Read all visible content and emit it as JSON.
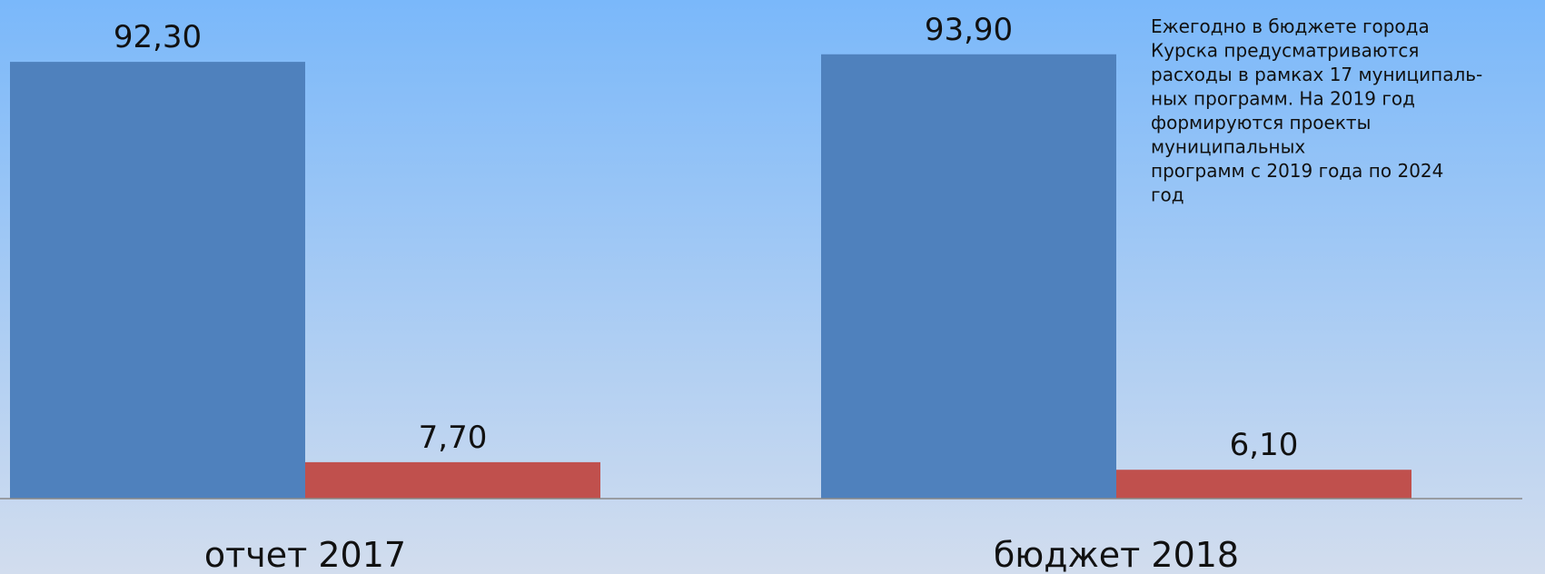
{
  "chart_data": {
    "type": "bar",
    "categories": [
      "отчет 2017",
      "бюджет 2018"
    ],
    "series": [
      {
        "color": "#4f81bd",
        "values": [
          92.3,
          93.9
        ],
        "value_labels": [
          "92,30",
          "93,90"
        ]
      },
      {
        "color": "#c0504d",
        "values": [
          7.7,
          6.1
        ],
        "value_labels": [
          "7,70",
          "6,10"
        ]
      }
    ],
    "ylim": [
      0,
      100
    ],
    "annotation": [
      "Ежегодно  в бюджете города",
      "Курска предусматриваются",
      "расходы  в рамках 17 муниципаль-",
      "ных программ. На  2019 год",
      "формируются  проекты",
      "муниципальных",
      "программ  с 2019 года  по 2024",
      "год"
    ]
  }
}
